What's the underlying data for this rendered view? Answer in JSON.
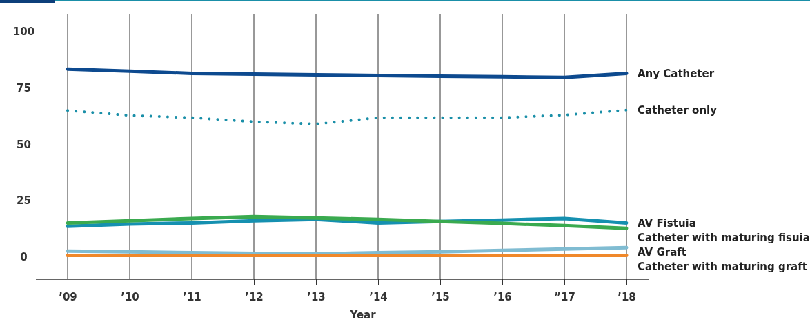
{
  "chart_data": {
    "type": "line",
    "xlabel": "Year",
    "categories": [
      "’09",
      "’10",
      "’11",
      "’12",
      "’13",
      "’14",
      "’15",
      "’16",
      "”17",
      "’18"
    ],
    "ylim": [
      -10,
      108
    ],
    "yticks": [
      0,
      25,
      50,
      75,
      100
    ],
    "grid": "x",
    "legend": false,
    "marker": "none",
    "series": [
      {
        "name": "Any Catheter",
        "color": "#0d4a8f",
        "values": [
          83.4,
          82.5,
          81.5,
          81.2,
          80.9,
          80.6,
          80.3,
          80,
          79.7,
          81.5
        ]
      },
      {
        "name": "Catheter only",
        "color": "#1a8fa8",
        "line_style": "dotted",
        "values": [
          65,
          62.8,
          61.8,
          60,
          59,
          61.8,
          61.8,
          61.8,
          63,
          65.2
        ]
      },
      {
        "name": "AV Fistuia",
        "color": "#1590b0",
        "values": [
          13.5,
          14.5,
          15,
          16,
          16.6,
          15,
          15.7,
          16.3,
          17,
          15
        ]
      },
      {
        "name": "Catheter with maturing fisuia",
        "color": "#3aaa4f",
        "values": [
          15,
          16,
          17,
          17.8,
          17.2,
          16.6,
          15.7,
          14.8,
          13.8,
          12.6
        ]
      },
      {
        "name": "AV Graft",
        "color": "#80bcd2",
        "values": [
          2.5,
          2.2,
          1.8,
          1.5,
          1.2,
          1.8,
          2.2,
          2.8,
          3.4,
          4
        ]
      },
      {
        "name": "Catheter with maturing graft",
        "color": "#f0882a",
        "values": [
          0.6,
          0.6,
          0.6,
          0.6,
          0.6,
          0.6,
          0.6,
          0.6,
          0.6,
          0.6
        ]
      }
    ]
  }
}
